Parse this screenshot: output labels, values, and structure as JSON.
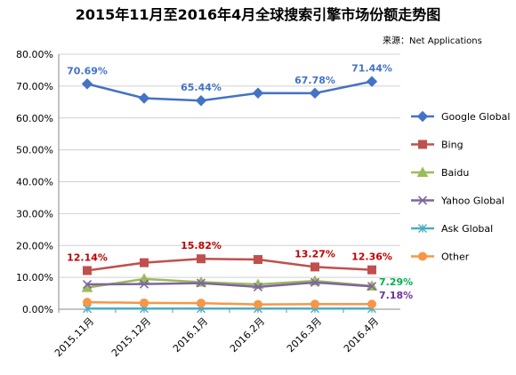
{
  "chart_data": {
    "type": "line",
    "title": "2015年11月至2016年4月全球搜索引擎市场份额走势图",
    "source": "来源：Net Applications",
    "categories": [
      "2015.11月",
      "2015.12月",
      "2016.1月",
      "2016.2月",
      "2016.3月",
      "2016.4月"
    ],
    "ylim": [
      0,
      80
    ],
    "yticks": [
      "0.00%",
      "10.00%",
      "20.00%",
      "30.00%",
      "40.00%",
      "50.00%",
      "60.00%",
      "70.00%",
      "80.00%"
    ],
    "grid": true,
    "legend_position": "right",
    "series": [
      {
        "name": "Google   Global",
        "color": "#4472C4",
        "marker": "diamond",
        "values": [
          70.69,
          66.2,
          65.44,
          67.8,
          67.78,
          71.44
        ]
      },
      {
        "name": "Bing",
        "color": "#C0504D",
        "marker": "square",
        "values": [
          12.14,
          14.6,
          15.82,
          15.6,
          13.27,
          12.36
        ]
      },
      {
        "name": "Baidu",
        "color": "#9BBB59",
        "marker": "triangle",
        "values": [
          6.8,
          9.5,
          8.5,
          7.8,
          8.9,
          7.29
        ]
      },
      {
        "name": "Yahoo   Global",
        "color": "#8064A2",
        "marker": "x",
        "values": [
          7.8,
          7.9,
          8.2,
          7.0,
          8.4,
          7.18
        ]
      },
      {
        "name": "Ask   Global",
        "color": "#4BACC6",
        "marker": "asterisk",
        "values": [
          0.2,
          0.2,
          0.2,
          0.2,
          0.2,
          0.2
        ]
      },
      {
        "name": "Other",
        "color": "#F79646",
        "marker": "circle",
        "values": [
          2.2,
          2.0,
          1.9,
          1.5,
          1.6,
          1.6
        ]
      }
    ],
    "data_labels": [
      {
        "series": 0,
        "index": 0,
        "text": "70.69%",
        "color": "#4472C4"
      },
      {
        "series": 0,
        "index": 2,
        "text": "65.44%",
        "color": "#4472C4"
      },
      {
        "series": 0,
        "index": 4,
        "text": "67.78%",
        "color": "#4472C4"
      },
      {
        "series": 0,
        "index": 5,
        "text": "71.44%",
        "color": "#4472C4"
      },
      {
        "series": 1,
        "index": 0,
        "text": "12.14%",
        "color": "#C00000"
      },
      {
        "series": 1,
        "index": 2,
        "text": "15.82%",
        "color": "#C00000"
      },
      {
        "series": 1,
        "index": 4,
        "text": "13.27%",
        "color": "#C00000"
      },
      {
        "series": 1,
        "index": 5,
        "text": "12.36%",
        "color": "#C00000"
      },
      {
        "series": 2,
        "index": 5,
        "text": "7.29%",
        "color": "#00B050"
      },
      {
        "series": 3,
        "index": 5,
        "text": "7.18%",
        "color": "#7030A0"
      }
    ]
  }
}
